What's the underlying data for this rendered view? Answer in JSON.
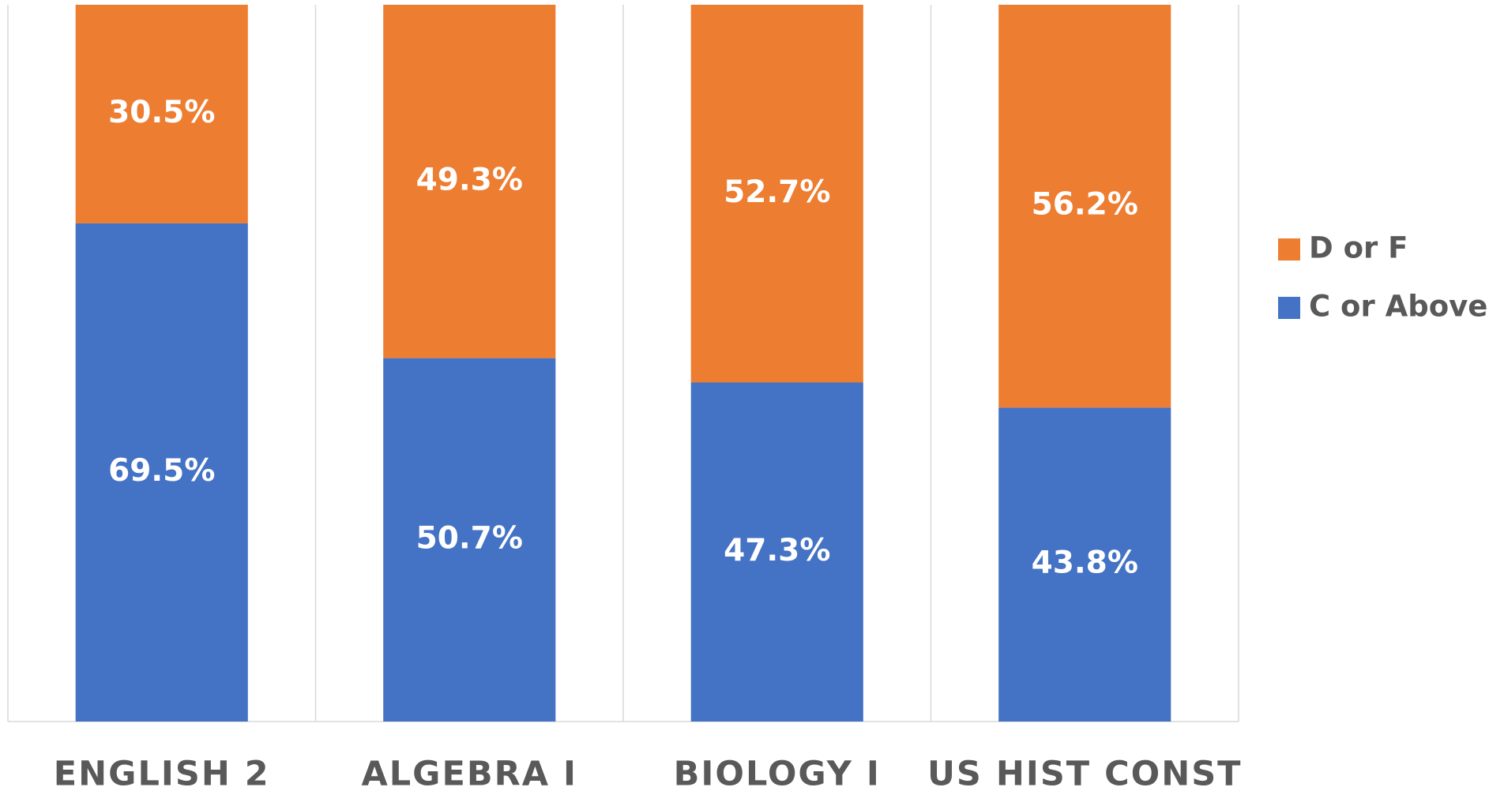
{
  "chart_data": {
    "type": "stacked_bar",
    "categories": [
      "ENGLISH 2",
      "ALGEBRA I",
      "BIOLOGY I",
      "US HIST CONST"
    ],
    "series": [
      {
        "name": "C or Above",
        "color": "#4472c4",
        "values": [
          69.5,
          50.7,
          47.3,
          43.8
        ],
        "value_labels": [
          "69.5%",
          "50.7%",
          "47.3%",
          "43.8%"
        ]
      },
      {
        "name": "D or F",
        "color": "#ed7d31",
        "values": [
          30.5,
          49.3,
          52.7,
          56.2
        ],
        "value_labels": [
          "30.5%",
          "49.3%",
          "52.7%",
          "56.2%"
        ]
      }
    ],
    "ylim": [
      0,
      100
    ],
    "legend": "right"
  }
}
